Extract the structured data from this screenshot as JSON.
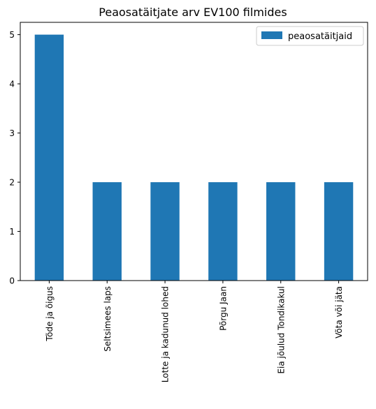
{
  "chart_data": {
    "type": "bar",
    "title": "Peaosatäitjate arv EV100 filmides",
    "xlabel": "",
    "ylabel": "",
    "categories": [
      "Tõde ja õigus",
      "Seltsimees laps",
      "Lotte ja kadunud lohed",
      "Põrgu Jaan",
      "Eia jõulud Tondikakul",
      "Võta või jäta"
    ],
    "series": [
      {
        "name": "peaosatäitjaid",
        "values": [
          5,
          2,
          2,
          2,
          2,
          2
        ],
        "color": "#1f77b4"
      }
    ],
    "ylim": [
      0,
      5.25
    ],
    "yticks": [
      0,
      1,
      2,
      3,
      4,
      5
    ],
    "grid": false,
    "legend_position": "top-right"
  }
}
